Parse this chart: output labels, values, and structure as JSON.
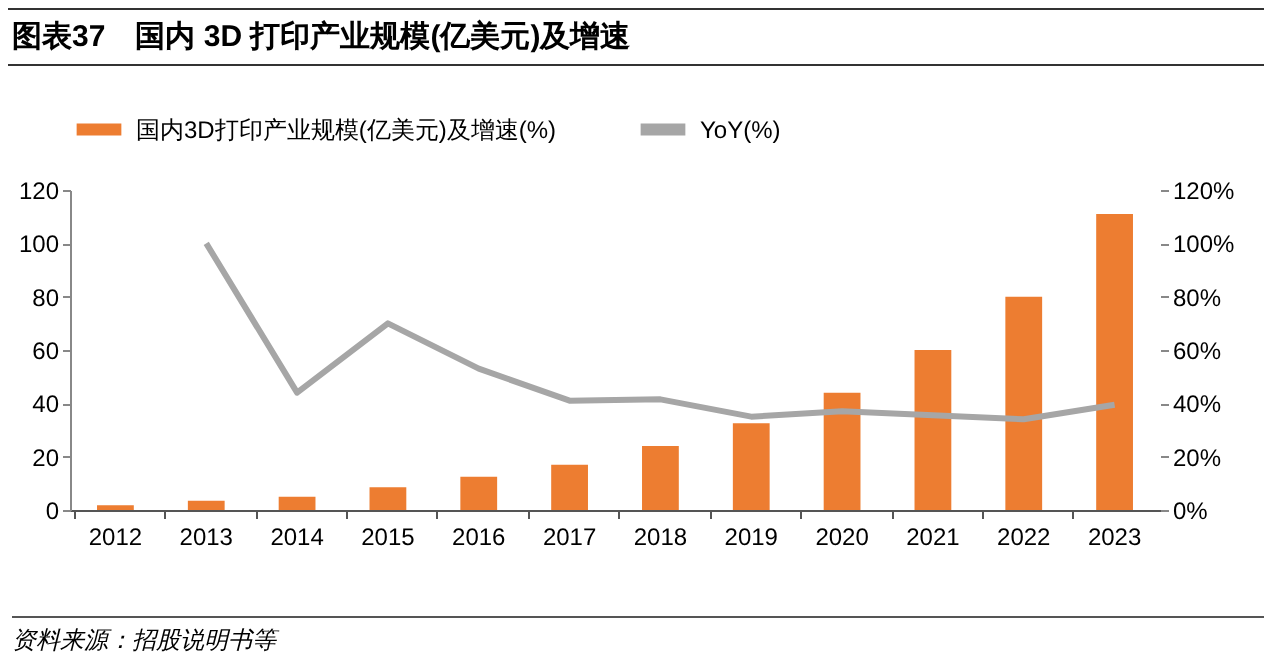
{
  "chart_data": {
    "type": "bar",
    "title": "图表37　国内 3D 打印产业规模(亿美元)及增速",
    "categories": [
      "2012",
      "2013",
      "2014",
      "2015",
      "2016",
      "2017",
      "2018",
      "2019",
      "2020",
      "2021",
      "2022",
      "2023"
    ],
    "series": [
      {
        "name": "国内3D打印产业规模(亿美元)及增速(%)",
        "color": "#ed7d31",
        "values": [
          1.8,
          3.5,
          5,
          8.5,
          12.5,
          17,
          24,
          32.5,
          44,
          60,
          80,
          111
        ]
      },
      {
        "name": "YoY(%)",
        "type": "line",
        "axis": "y2",
        "color": "#a6a6a6",
        "values": [
          null,
          100,
          44,
          70,
          53,
          41,
          41.5,
          35,
          37,
          35.5,
          34,
          39.5
        ]
      }
    ],
    "ylim": [
      0,
      120
    ],
    "yticks": [
      0,
      20,
      40,
      60,
      80,
      100,
      120
    ],
    "y2lim": [
      0,
      120
    ],
    "y2ticks": [
      {
        "value": 0,
        "label": "0%"
      },
      {
        "value": 20,
        "label": "20%"
      },
      {
        "value": 40,
        "label": "40%"
      },
      {
        "value": 60,
        "label": "60%"
      },
      {
        "value": 80,
        "label": "80%"
      },
      {
        "value": 100,
        "label": "100%"
      },
      {
        "value": 120,
        "label": "120%"
      }
    ],
    "grid": false,
    "legend": "top",
    "marker": "none",
    "line_style": "solid",
    "annotations": [
      "资料来源：招股说明书等"
    ]
  }
}
